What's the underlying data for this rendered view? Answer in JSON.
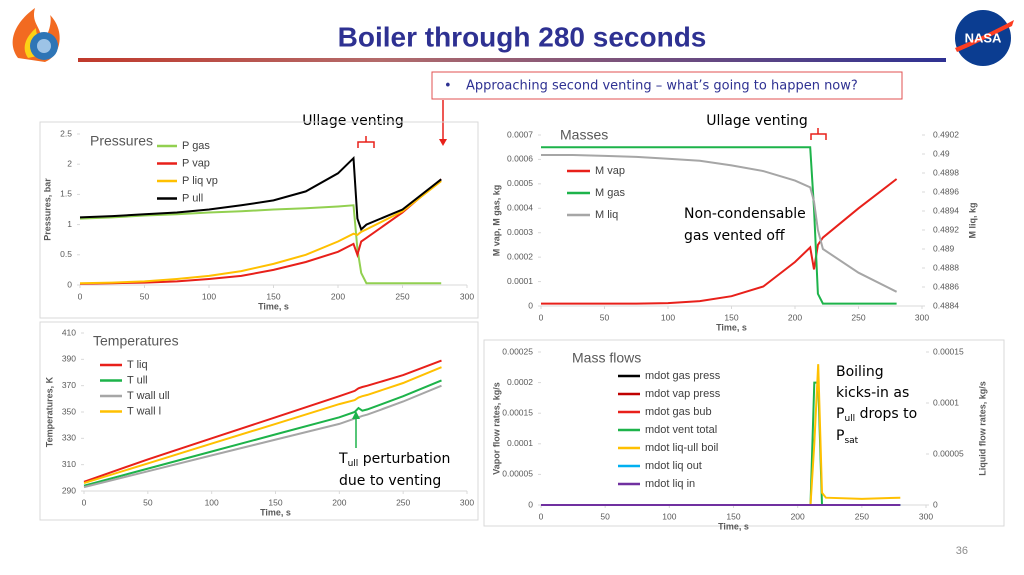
{
  "title": "Boiler through 280 seconds",
  "callout": {
    "bullet": "•",
    "text": "Approaching second venting – what’s going to happen now?"
  },
  "venting_labels": [
    "Ullage venting",
    "Ullage venting"
  ],
  "gas_note": [
    "Non-condensable",
    "gas vented off"
  ],
  "tull_note": [
    "T",
    "ull",
    " perturbation",
    "due to venting"
  ],
  "boiling_note": [
    "Boiling",
    "kicks-in as",
    "P",
    "ull",
    " drops to",
    "P",
    "sat"
  ],
  "logo_text": "NASA",
  "page_number": "36",
  "chart_data": [
    {
      "type": "line",
      "title": "Pressures",
      "xlabel": "Time, s",
      "ylabel": "Pressures, bar",
      "grid": false,
      "x": [
        0,
        25,
        50,
        75,
        100,
        125,
        150,
        175,
        200,
        212,
        215,
        218,
        222,
        250,
        280
      ],
      "xlim": [
        0,
        300
      ],
      "xticks": [
        0,
        50,
        100,
        150,
        200,
        250,
        300
      ],
      "ylim": [
        0,
        2.5
      ],
      "yticks": [
        0,
        0.5,
        1,
        1.5,
        2,
        2.5
      ],
      "series": [
        {
          "name": "P gas",
          "color": "#92d050",
          "values": [
            1.1,
            1.12,
            1.15,
            1.17,
            1.2,
            1.22,
            1.25,
            1.27,
            1.3,
            1.32,
            0.6,
            0.2,
            0.03,
            0.03,
            0.03
          ]
        },
        {
          "name": "P vap",
          "color": "#e8201a",
          "values": [
            0.02,
            0.03,
            0.04,
            0.06,
            0.1,
            0.15,
            0.25,
            0.38,
            0.55,
            0.68,
            0.5,
            0.72,
            0.78,
            1.2,
            1.75
          ]
        },
        {
          "name": "P liq vp",
          "color": "#ffc000",
          "values": [
            0.03,
            0.04,
            0.06,
            0.1,
            0.15,
            0.23,
            0.35,
            0.5,
            0.72,
            0.85,
            0.83,
            0.88,
            0.92,
            1.22,
            1.72
          ]
        },
        {
          "name": "P ull",
          "color": "#000000",
          "values": [
            1.12,
            1.14,
            1.17,
            1.2,
            1.25,
            1.32,
            1.4,
            1.55,
            1.85,
            2.1,
            1.1,
            0.92,
            1.0,
            1.25,
            1.75
          ]
        }
      ]
    },
    {
      "type": "line",
      "title": "Masses",
      "xlabel": "Time, s",
      "ylabel": "M vap, M gas, kg",
      "y2label": "M liq, kg",
      "grid": false,
      "x": [
        0,
        25,
        50,
        75,
        100,
        125,
        150,
        175,
        200,
        212,
        215,
        218,
        222,
        250,
        280
      ],
      "xlim": [
        0,
        300
      ],
      "xticks": [
        0,
        50,
        100,
        150,
        200,
        250,
        300
      ],
      "ylim": [
        0,
        0.0007
      ],
      "yticks": [
        0,
        0.0001,
        0.0002,
        0.0003,
        0.0004,
        0.0005,
        0.0006,
        0.0007
      ],
      "y2lim": [
        0.4884,
        0.4902
      ],
      "y2ticks": [
        0.4884,
        0.4886,
        0.4888,
        0.489,
        0.4892,
        0.4894,
        0.4896,
        0.4898,
        0.49,
        0.4902
      ],
      "series": [
        {
          "name": "M vap",
          "color": "#e8201a",
          "values": [
            1e-05,
            1e-05,
            1e-05,
            1e-05,
            1.2e-05,
            2e-05,
            4e-05,
            8e-05,
            0.00018,
            0.00024,
            0.00015,
            0.00025,
            0.00028,
            0.0004,
            0.00052
          ]
        },
        {
          "name": "M gas",
          "color": "#1db34a",
          "values": [
            0.00065,
            0.00065,
            0.00065,
            0.00065,
            0.00065,
            0.00065,
            0.00065,
            0.00065,
            0.00065,
            0.00065,
            0.0004,
            5e-05,
            1e-05,
            1e-05,
            1e-05
          ]
        },
        {
          "name": "M liq",
          "color": "#a6a6a6",
          "axis": "y2",
          "values": [
            0.48999,
            0.48999,
            0.48998,
            0.48997,
            0.48995,
            0.48993,
            0.48988,
            0.48982,
            0.48972,
            0.48965,
            0.4895,
            0.4892,
            0.489,
            0.48875,
            0.48855
          ]
        }
      ]
    },
    {
      "type": "line",
      "title": "Temperatures",
      "xlabel": "Time, s",
      "ylabel": "Temperatures, K",
      "grid": false,
      "x": [
        0,
        50,
        100,
        150,
        200,
        212,
        215,
        218,
        222,
        250,
        280
      ],
      "xlim": [
        0,
        300
      ],
      "xticks": [
        0,
        50,
        100,
        150,
        200,
        250,
        300
      ],
      "ylim": [
        290,
        410
      ],
      "yticks": [
        290,
        310,
        330,
        350,
        370,
        390,
        410
      ],
      "series": [
        {
          "name": "T liq",
          "color": "#e8201a",
          "values": [
            297,
            314,
            330,
            346,
            362,
            366,
            368,
            369,
            370,
            378,
            389
          ]
        },
        {
          "name": "T ull",
          "color": "#1db34a",
          "values": [
            294,
            307,
            320,
            333,
            346,
            350,
            353,
            351,
            352,
            362,
            374
          ]
        },
        {
          "name": "T wall ull",
          "color": "#a6a6a6",
          "values": [
            293,
            305,
            317,
            329,
            341,
            345,
            346,
            347,
            348,
            358,
            370
          ]
        },
        {
          "name": "T wall l",
          "color": "#ffc000",
          "values": [
            296,
            311,
            326,
            341,
            356,
            359,
            361,
            362,
            363,
            372,
            384
          ]
        }
      ]
    },
    {
      "type": "line",
      "title": "Mass flows",
      "xlabel": "Time, s",
      "ylabel": "Vapor flow rates, kg/s",
      "y2label": "Liquid flow rates, kg/s",
      "grid": false,
      "x": [
        0,
        100,
        200,
        210,
        213,
        216,
        219,
        222,
        250,
        280
      ],
      "xlim": [
        0,
        300
      ],
      "xticks": [
        0,
        50,
        100,
        150,
        200,
        250,
        300
      ],
      "ylim": [
        0,
        0.00025
      ],
      "yticks": [
        0,
        5e-05,
        0.0001,
        0.00015,
        0.0002,
        0.00025
      ],
      "y2lim": [
        0,
        0.00015
      ],
      "y2ticks": [
        0,
        5e-05,
        0.0001,
        0.00015
      ],
      "series": [
        {
          "name": "mdot gas press",
          "color": "#000000",
          "values": [
            0,
            0,
            0,
            0,
            0,
            0,
            0,
            0,
            0,
            0
          ]
        },
        {
          "name": "mdot vap press",
          "color": "#c00000",
          "values": [
            0,
            0,
            0,
            0,
            0,
            0,
            0,
            0,
            0,
            0
          ]
        },
        {
          "name": "mdot gas bub",
          "color": "#e8201a",
          "values": [
            0,
            0,
            0,
            0,
            0,
            0,
            0,
            0,
            0,
            0
          ]
        },
        {
          "name": "mdot vent total",
          "color": "#1db34a",
          "values": [
            0,
            0,
            0,
            0,
            0.0002,
            0.0002,
            0,
            0,
            0,
            0
          ]
        },
        {
          "name": "mdot liq-ull boil",
          "color": "#ffc000",
          "values": [
            0,
            0,
            0,
            0,
            0.0001,
            0.00023,
            2e-05,
            1.2e-05,
            1e-05,
            1.2e-05
          ]
        },
        {
          "name": "mdot liq out",
          "color": "#00b0f0",
          "axis": "y2",
          "values": [
            0,
            0,
            0,
            0,
            0,
            0,
            0,
            0,
            0,
            0
          ]
        },
        {
          "name": "mdot liq in",
          "color": "#7030a0",
          "axis": "y2",
          "values": [
            0,
            0,
            0,
            0,
            0,
            0,
            0,
            0,
            0,
            0
          ]
        }
      ]
    }
  ]
}
